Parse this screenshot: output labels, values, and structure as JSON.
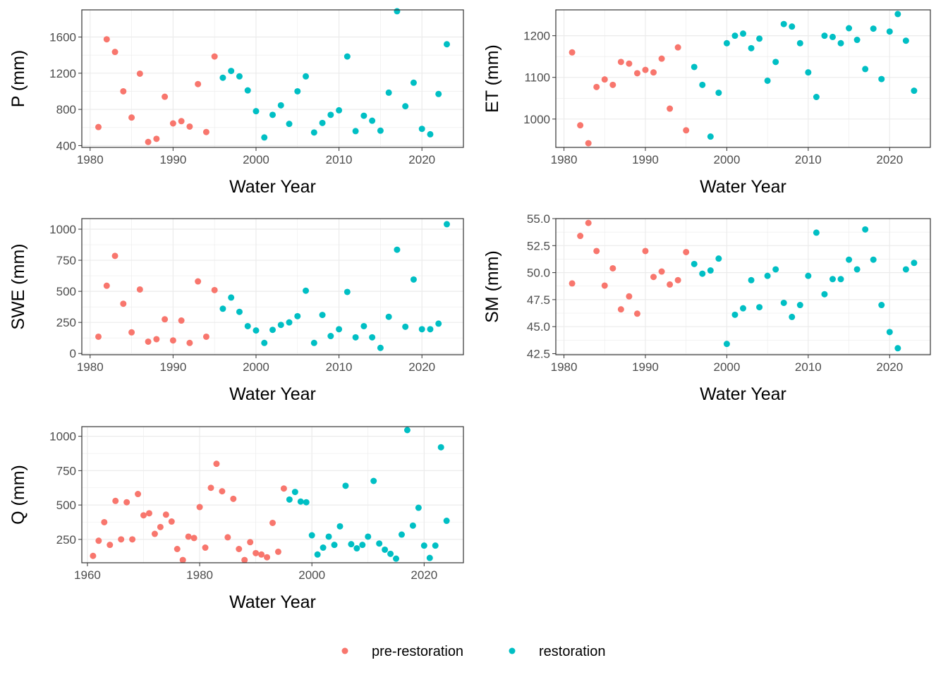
{
  "colors": {
    "pre-restoration": "#F8766D",
    "restoration": "#00BFC4"
  },
  "legend": {
    "items": [
      "pre-restoration",
      "restoration"
    ],
    "position": "bottom"
  },
  "chart_data": [
    {
      "type": "scatter",
      "xlabel": "Water Year",
      "ylabel": "P (mm)",
      "xlim": [
        1979,
        2025
      ],
      "ylim": [
        380,
        1900
      ],
      "xticks": [
        1980,
        1990,
        2000,
        2010,
        2020
      ],
      "yticks": [
        400,
        800,
        1200,
        1600
      ],
      "grid": true,
      "series": [
        {
          "name": "pre-restoration",
          "x": [
            1981,
            1982,
            1983,
            1984,
            1985,
            1986,
            1987,
            1988,
            1989,
            1990,
            1991,
            1992,
            1993,
            1994,
            1995
          ],
          "y": [
            605,
            1575,
            1435,
            1000,
            710,
            1195,
            440,
            475,
            940,
            645,
            670,
            610,
            1080,
            550,
            1385
          ]
        },
        {
          "name": "restoration",
          "x": [
            1996,
            1997,
            1998,
            1999,
            2000,
            2001,
            2002,
            2003,
            2004,
            2005,
            2006,
            2007,
            2008,
            2009,
            2010,
            2011,
            2012,
            2013,
            2014,
            2015,
            2016,
            2017,
            2018,
            2019,
            2020,
            2021,
            2022,
            2023
          ],
          "y": [
            1150,
            1225,
            1165,
            1010,
            780,
            490,
            740,
            845,
            640,
            1000,
            1165,
            545,
            650,
            740,
            790,
            1385,
            560,
            730,
            675,
            565,
            985,
            1885,
            835,
            1095,
            585,
            525,
            970,
            1520
          ]
        }
      ]
    },
    {
      "type": "scatter",
      "xlabel": "Water Year",
      "ylabel": "ET (mm)",
      "xlim": [
        1979,
        2025
      ],
      "ylim": [
        932,
        1262
      ],
      "xticks": [
        1980,
        1990,
        2000,
        2010,
        2020
      ],
      "yticks": [
        1000,
        1100,
        1200
      ],
      "grid": true,
      "series": [
        {
          "name": "pre-restoration",
          "x": [
            1981,
            1982,
            1983,
            1984,
            1985,
            1986,
            1987,
            1988,
            1989,
            1990,
            1991,
            1992,
            1993,
            1994,
            1995
          ],
          "y": [
            1160,
            985,
            942,
            1077,
            1095,
            1082,
            1137,
            1133,
            1110,
            1118,
            1112,
            1145,
            1025,
            1172,
            973
          ]
        },
        {
          "name": "restoration",
          "x": [
            1996,
            1997,
            1998,
            1999,
            2000,
            2001,
            2002,
            2003,
            2004,
            2005,
            2006,
            2007,
            2008,
            2009,
            2010,
            2011,
            2012,
            2013,
            2014,
            2015,
            2016,
            2017,
            2018,
            2019,
            2020,
            2021,
            2022,
            2023
          ],
          "y": [
            1125,
            1082,
            958,
            1063,
            1182,
            1200,
            1205,
            1170,
            1193,
            1092,
            1137,
            1228,
            1222,
            1182,
            1112,
            1053,
            1200,
            1197,
            1182,
            1218,
            1190,
            1120,
            1217,
            1096,
            1210,
            1252,
            1188,
            1068
          ]
        }
      ]
    },
    {
      "type": "scatter",
      "xlabel": "Water Year",
      "ylabel": "SWE (mm)",
      "xlim": [
        1979,
        2025
      ],
      "ylim": [
        -10,
        1085
      ],
      "xticks": [
        1980,
        1990,
        2000,
        2010,
        2020
      ],
      "yticks": [
        0,
        250,
        500,
        750,
        1000
      ],
      "grid": true,
      "series": [
        {
          "name": "pre-restoration",
          "x": [
            1981,
            1982,
            1983,
            1984,
            1985,
            1986,
            1987,
            1988,
            1989,
            1990,
            1991,
            1992,
            1993,
            1994,
            1995
          ],
          "y": [
            135,
            545,
            785,
            400,
            170,
            515,
            95,
            115,
            275,
            105,
            265,
            85,
            580,
            135,
            510
          ]
        },
        {
          "name": "restoration",
          "x": [
            1996,
            1997,
            1998,
            1999,
            2000,
            2001,
            2002,
            2003,
            2004,
            2005,
            2006,
            2007,
            2008,
            2009,
            2010,
            2011,
            2012,
            2013,
            2014,
            2015,
            2016,
            2017,
            2018,
            2019,
            2020,
            2021,
            2022,
            2023
          ],
          "y": [
            360,
            450,
            335,
            220,
            185,
            85,
            190,
            230,
            250,
            300,
            505,
            85,
            310,
            140,
            195,
            495,
            130,
            220,
            130,
            45,
            295,
            835,
            215,
            595,
            195,
            195,
            240,
            1040
          ]
        }
      ]
    },
    {
      "type": "scatter",
      "xlabel": "Water Year",
      "ylabel": "SM (mm)",
      "xlim": [
        1979,
        2025
      ],
      "ylim": [
        42.4,
        55.0
      ],
      "xticks": [
        1980,
        1990,
        2000,
        2010,
        2020
      ],
      "yticks": [
        42.5,
        45.0,
        47.5,
        50.0,
        52.5,
        55.0
      ],
      "ytick_labels": [
        "42.5",
        "45.0",
        "47.5",
        "50.0",
        "52.5",
        "55.0"
      ],
      "grid": true,
      "series": [
        {
          "name": "pre-restoration",
          "x": [
            1981,
            1982,
            1983,
            1984,
            1985,
            1986,
            1987,
            1988,
            1989,
            1990,
            1991,
            1992,
            1993,
            1994,
            1995
          ],
          "y": [
            49.0,
            53.4,
            54.6,
            52.0,
            48.8,
            50.4,
            46.6,
            47.8,
            46.2,
            52.0,
            49.6,
            50.1,
            48.9,
            49.3,
            51.9
          ]
        },
        {
          "name": "restoration",
          "x": [
            1996,
            1997,
            1998,
            1999,
            2000,
            2001,
            2002,
            2003,
            2004,
            2005,
            2006,
            2007,
            2008,
            2009,
            2010,
            2011,
            2012,
            2013,
            2014,
            2015,
            2016,
            2017,
            2018,
            2019,
            2020,
            2021,
            2022,
            2023
          ],
          "y": [
            50.8,
            49.9,
            50.2,
            51.3,
            43.4,
            46.1,
            46.7,
            49.3,
            46.8,
            49.7,
            50.3,
            47.2,
            45.9,
            47.0,
            49.7,
            53.7,
            48.0,
            49.4,
            49.4,
            51.2,
            50.3,
            54.0,
            51.2,
            47.0,
            44.5,
            43.0,
            50.3,
            50.9
          ]
        }
      ]
    },
    {
      "type": "scatter",
      "xlabel": "Water Year",
      "ylabel": "Q (mm)",
      "xlim": [
        1959,
        2027
      ],
      "ylim": [
        80,
        1070
      ],
      "xticks": [
        1960,
        1980,
        2000,
        2020
      ],
      "yticks": [
        250,
        500,
        750,
        1000
      ],
      "grid": true,
      "series": [
        {
          "name": "pre-restoration",
          "x": [
            1961,
            1962,
            1963,
            1964,
            1965,
            1966,
            1967,
            1968,
            1969,
            1970,
            1971,
            1972,
            1973,
            1974,
            1975,
            1976,
            1977,
            1978,
            1979,
            1980,
            1981,
            1982,
            1983,
            1984,
            1985,
            1986,
            1987,
            1988,
            1989,
            1990,
            1991,
            1992,
            1993,
            1994,
            1995
          ],
          "y": [
            130,
            240,
            375,
            210,
            530,
            250,
            520,
            250,
            580,
            425,
            440,
            290,
            340,
            430,
            380,
            180,
            100,
            270,
            260,
            485,
            190,
            625,
            800,
            600,
            265,
            545,
            180,
            100,
            230,
            150,
            140,
            120,
            370,
            160,
            620
          ]
        },
        {
          "name": "restoration",
          "x": [
            1996,
            1997,
            1998,
            1999,
            2000,
            2001,
            2002,
            2003,
            2004,
            2005,
            2006,
            2007,
            2008,
            2009,
            2010,
            2011,
            2012,
            2013,
            2014,
            2015,
            2016,
            2017,
            2018,
            2019,
            2020,
            2021,
            2022,
            2023,
            2024
          ],
          "y": [
            540,
            595,
            525,
            520,
            280,
            140,
            190,
            270,
            210,
            345,
            640,
            215,
            185,
            210,
            270,
            675,
            220,
            175,
            145,
            110,
            285,
            1045,
            350,
            480,
            205,
            115,
            205,
            920,
            385
          ]
        }
      ]
    }
  ]
}
